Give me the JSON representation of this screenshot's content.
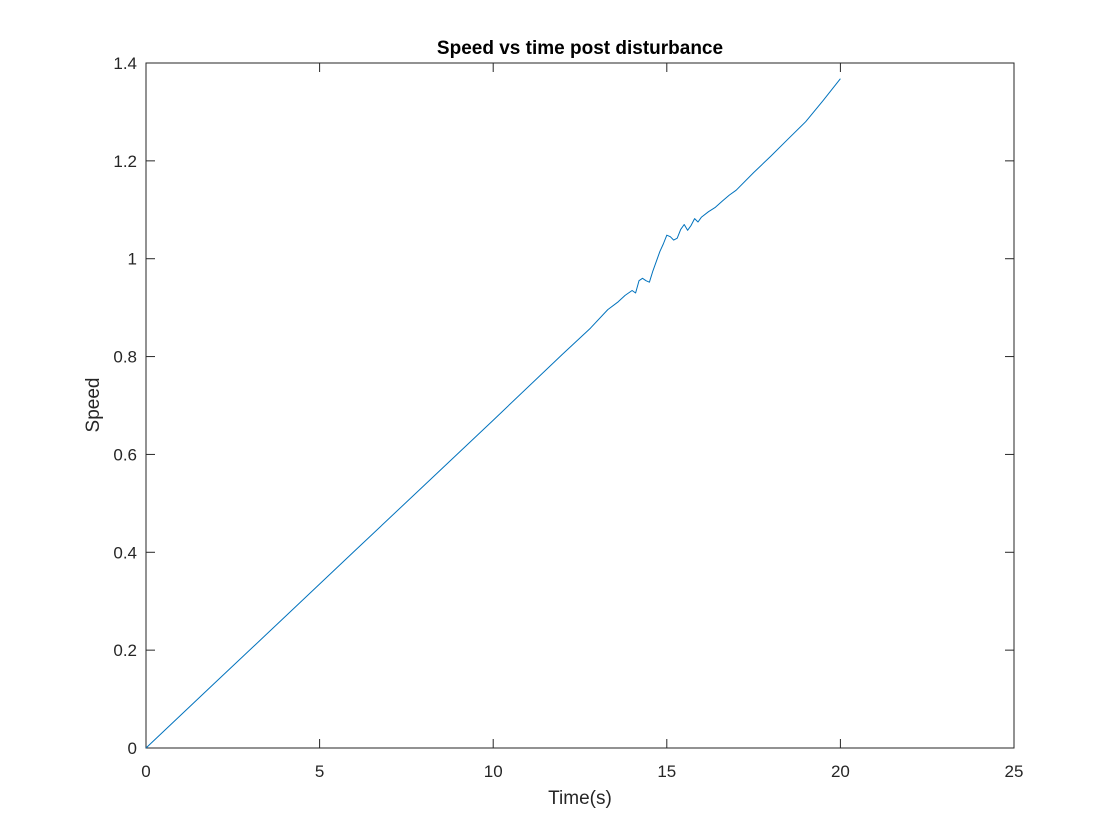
{
  "chart_data": {
    "type": "line",
    "title": "Speed vs time post disturbance",
    "xlabel": "Time(s)",
    "ylabel": "Speed",
    "xlim": [
      0,
      25
    ],
    "ylim": [
      0,
      1.4
    ],
    "x_ticks": [
      0,
      5,
      10,
      15,
      20,
      25
    ],
    "y_ticks": [
      0,
      0.2,
      0.4,
      0.6,
      0.8,
      1.0,
      1.2,
      1.4
    ],
    "x_tick_labels": [
      "0",
      "5",
      "10",
      "15",
      "20",
      "25"
    ],
    "y_tick_labels": [
      "0",
      "0.2",
      "0.4",
      "0.6",
      "0.8",
      "1",
      "1.2",
      "1.4"
    ],
    "grid": false,
    "box": true,
    "line_color": "#0072BD",
    "series": [
      {
        "x": [
          0,
          2,
          4,
          6,
          8,
          10,
          12,
          12.8,
          13.3,
          13.6,
          13.8,
          14.0,
          14.1,
          14.2,
          14.3,
          14.4,
          14.5,
          14.6,
          14.7,
          14.8,
          14.9,
          15.0,
          15.1,
          15.2,
          15.3,
          15.4,
          15.5,
          15.6,
          15.7,
          15.8,
          15.9,
          16.0,
          16.2,
          16.4,
          16.6,
          16.8,
          17.0,
          17.5,
          18.0,
          18.5,
          19.0,
          19.5,
          20.0
        ],
        "y": [
          0,
          0.134,
          0.268,
          0.402,
          0.536,
          0.67,
          0.805,
          0.858,
          0.896,
          0.912,
          0.925,
          0.935,
          0.93,
          0.955,
          0.96,
          0.955,
          0.952,
          0.975,
          0.995,
          1.015,
          1.03,
          1.048,
          1.045,
          1.038,
          1.042,
          1.06,
          1.07,
          1.058,
          1.068,
          1.082,
          1.075,
          1.085,
          1.096,
          1.105,
          1.118,
          1.13,
          1.14,
          1.176,
          1.21,
          1.245,
          1.28,
          1.323,
          1.368
        ]
      }
    ]
  }
}
